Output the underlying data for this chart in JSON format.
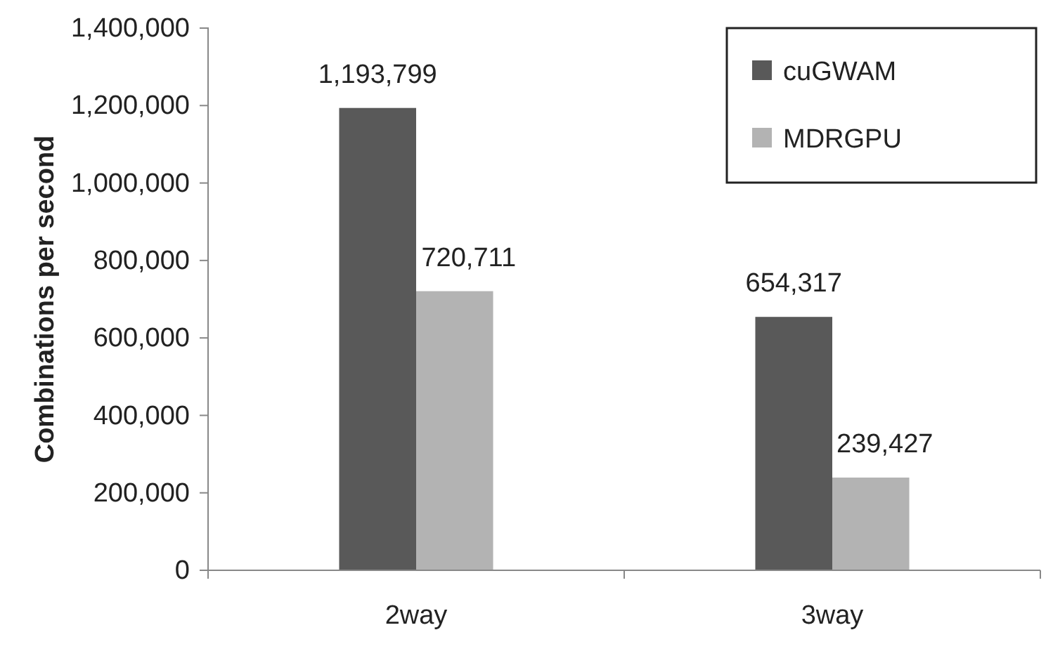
{
  "chart_data": {
    "type": "bar",
    "ylabel": "Combinations per second",
    "categories": [
      "2way",
      "3way"
    ],
    "series": [
      {
        "name": "cuGWAM",
        "color": "#595959",
        "values": [
          1193799,
          654317
        ],
        "value_labels": [
          "1,193,799",
          "654,317"
        ]
      },
      {
        "name": "MDRGPU",
        "color": "#b3b3b3",
        "values": [
          720711,
          239427
        ],
        "value_labels": [
          "720,711",
          "239,427"
        ]
      }
    ],
    "ylim": [
      0,
      1400000
    ],
    "yticks": [
      {
        "value": 0,
        "label": "0"
      },
      {
        "value": 200000,
        "label": "200,000"
      },
      {
        "value": 400000,
        "label": "400,000"
      },
      {
        "value": 600000,
        "label": "600,000"
      },
      {
        "value": 800000,
        "label": "800,000"
      },
      {
        "value": 1000000,
        "label": "1,000,000"
      },
      {
        "value": 1200000,
        "label": "1,200,000"
      },
      {
        "value": 1400000,
        "label": "1,400,000"
      }
    ],
    "legend": "top right",
    "grid": false
  }
}
